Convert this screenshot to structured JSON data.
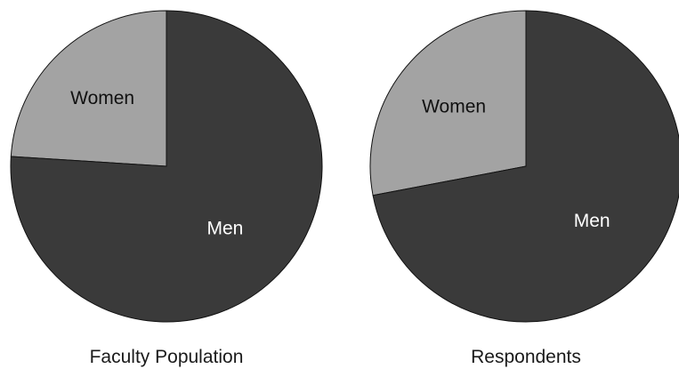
{
  "chart_data": [
    {
      "type": "pie",
      "title": "Faculty Population",
      "slices": [
        {
          "label": "Women",
          "value": 24,
          "color": "#a3a3a3",
          "label_color": "#111111"
        },
        {
          "label": "Men",
          "value": 76,
          "color": "#3a3a3a",
          "label_color": "#ffffff"
        }
      ]
    },
    {
      "type": "pie",
      "title": "Respondents",
      "slices": [
        {
          "label": "Women",
          "value": 28,
          "color": "#a3a3a3",
          "label_color": "#111111"
        },
        {
          "label": "Men",
          "value": 72,
          "color": "#3a3a3a",
          "label_color": "#ffffff"
        }
      ]
    }
  ]
}
